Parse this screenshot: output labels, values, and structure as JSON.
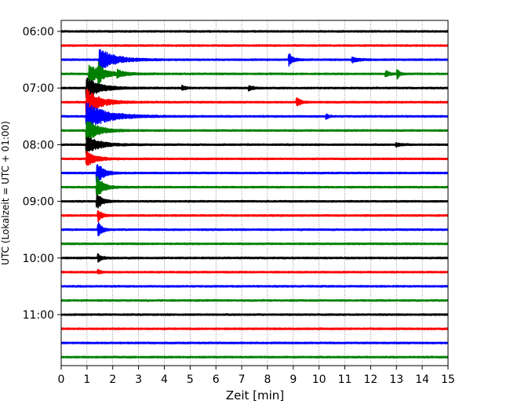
{
  "chart_data": {
    "type": "line",
    "title": "",
    "xlabel": "Zeit  [min]",
    "ylabel": "UTC (Lokalzeit = UTC + 01:00)",
    "xlim": [
      0,
      15
    ],
    "x_ticks": [
      0,
      1,
      2,
      3,
      4,
      5,
      6,
      7,
      8,
      9,
      10,
      11,
      12,
      13,
      14,
      15
    ],
    "x_tick_labels": [
      "0",
      "1",
      "2",
      "3",
      "4",
      "5",
      "6",
      "7",
      "8",
      "9",
      "10",
      "11",
      "12",
      "13",
      "14",
      "15"
    ],
    "y_tick_labels": [
      "06:00",
      "07:00",
      "08:00",
      "09:00",
      "10:00",
      "11:00"
    ],
    "y_tick_trace_index": [
      0,
      4,
      8,
      12,
      16,
      20
    ],
    "grid_x": true,
    "grid_style": "dotted",
    "trace_colors": [
      "#000000",
      "#ff0000",
      "#0000ff",
      "#008000"
    ],
    "trace_start": "06:00",
    "trace_interval_minutes": 15,
    "trace_count": 24,
    "events": [
      {
        "trace": 2,
        "x": 1.5,
        "amplitude": 1.6,
        "decay": 1.2
      },
      {
        "trace": 3,
        "x": 1.1,
        "amplitude": 1.3,
        "decay": 1.1
      },
      {
        "trace": 4,
        "x": 1.0,
        "amplitude": 1.5,
        "decay": 1.0
      },
      {
        "trace": 5,
        "x": 1.0,
        "amplitude": 1.9,
        "decay": 1.0
      },
      {
        "trace": 6,
        "x": 1.0,
        "amplitude": 1.9,
        "decay": 1.6
      },
      {
        "trace": 7,
        "x": 1.0,
        "amplitude": 1.6,
        "decay": 0.9
      },
      {
        "trace": 8,
        "x": 1.0,
        "amplitude": 1.3,
        "decay": 1.0
      },
      {
        "trace": 9,
        "x": 1.0,
        "amplitude": 1.0,
        "decay": 0.7
      },
      {
        "trace": 10,
        "x": 1.4,
        "amplitude": 1.6,
        "decay": 0.5
      },
      {
        "trace": 11,
        "x": 1.4,
        "amplitude": 1.6,
        "decay": 0.5
      },
      {
        "trace": 12,
        "x": 1.4,
        "amplitude": 1.1,
        "decay": 0.4
      },
      {
        "trace": 13,
        "x": 1.45,
        "amplitude": 0.8,
        "decay": 0.3
      },
      {
        "trace": 14,
        "x": 1.45,
        "amplitude": 1.0,
        "decay": 0.3
      },
      {
        "trace": 16,
        "x": 1.45,
        "amplitude": 0.5,
        "decay": 0.3
      },
      {
        "trace": 17,
        "x": 1.45,
        "amplitude": 0.3,
        "decay": 0.2
      },
      {
        "trace": 2,
        "x": 8.85,
        "amplitude": 0.8,
        "decay": 0.3
      },
      {
        "trace": 2,
        "x": 11.3,
        "amplitude": 0.35,
        "decay": 0.5
      },
      {
        "trace": 3,
        "x": 2.2,
        "amplitude": 0.5,
        "decay": 0.4
      },
      {
        "trace": 3,
        "x": 12.6,
        "amplitude": 0.4,
        "decay": 0.3
      },
      {
        "trace": 3,
        "x": 13.05,
        "amplitude": 0.6,
        "decay": 0.2
      },
      {
        "trace": 3,
        "x": 1.45,
        "amplitude": 0.9,
        "decay": 0.3
      },
      {
        "trace": 4,
        "x": 4.7,
        "amplitude": 0.3,
        "decay": 0.3
      },
      {
        "trace": 4,
        "x": 7.3,
        "amplitude": 0.35,
        "decay": 0.3
      },
      {
        "trace": 5,
        "x": 9.15,
        "amplitude": 0.6,
        "decay": 0.3
      },
      {
        "trace": 8,
        "x": 13.0,
        "amplitude": 0.25,
        "decay": 0.4
      },
      {
        "trace": 6,
        "x": 10.3,
        "amplitude": 0.3,
        "decay": 0.2
      }
    ]
  }
}
